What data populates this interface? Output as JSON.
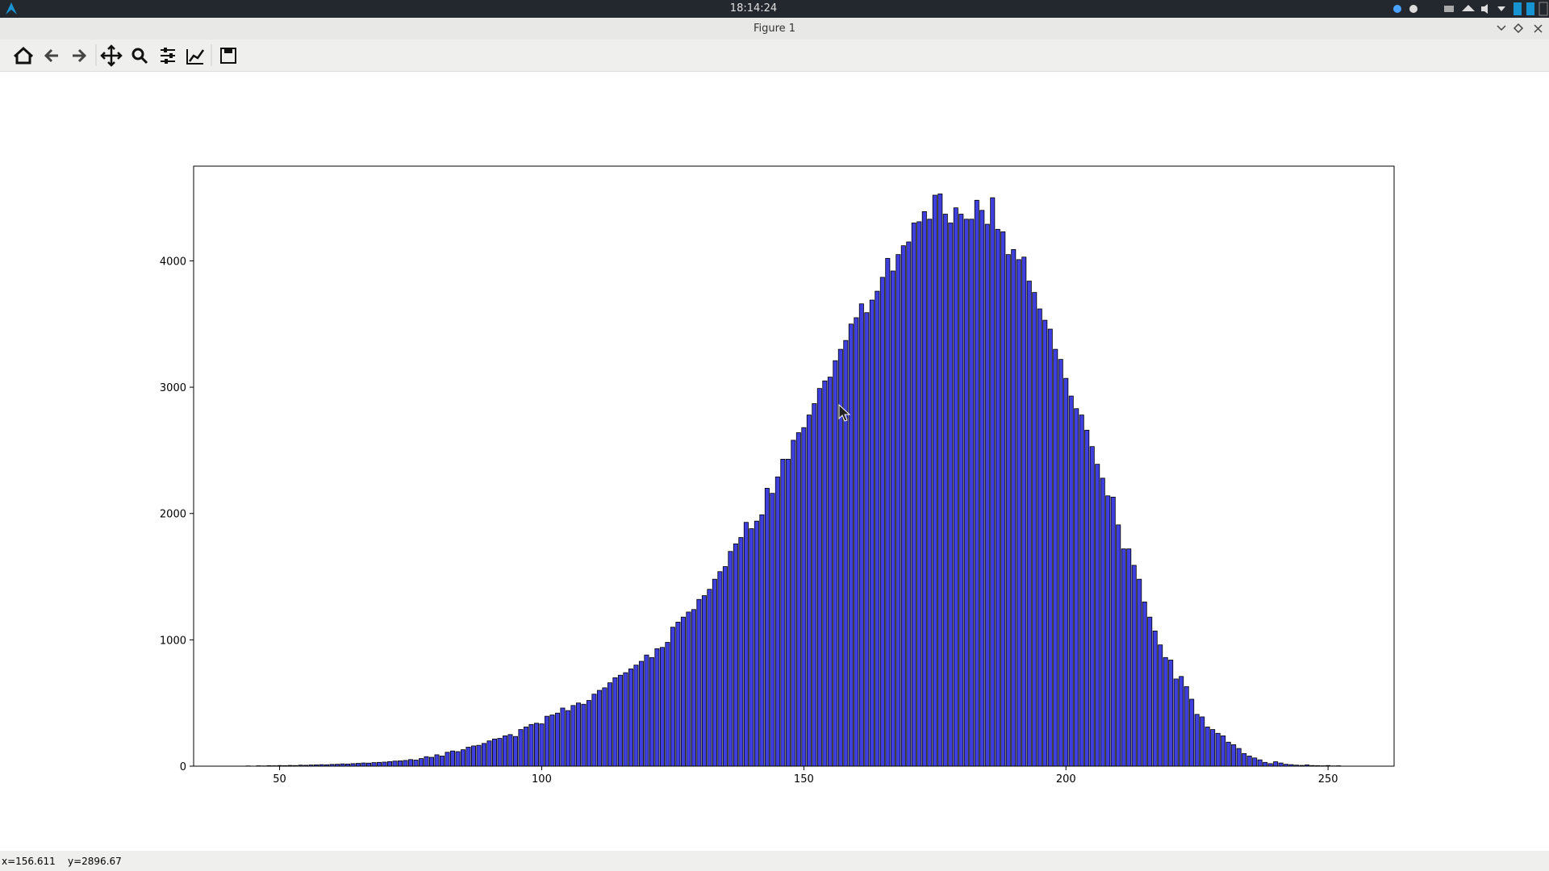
{
  "window": {
    "clock": "18:14:24",
    "title": "Figure 1",
    "status_x": "x=156.611",
    "status_y": "y=2896.67"
  },
  "chart_data": {
    "type": "bar",
    "color": "#3f3fe0",
    "edgecolor": "#000000",
    "bar_width": 0.8,
    "x": [
      44,
      45,
      46,
      47,
      48,
      49,
      50,
      51,
      52,
      53,
      54,
      55,
      56,
      57,
      58,
      59,
      60,
      61,
      62,
      63,
      64,
      65,
      66,
      67,
      68,
      69,
      70,
      71,
      72,
      73,
      74,
      75,
      76,
      77,
      78,
      79,
      80,
      81,
      82,
      83,
      84,
      85,
      86,
      87,
      88,
      89,
      90,
      91,
      92,
      93,
      94,
      95,
      96,
      97,
      98,
      99,
      100,
      101,
      102,
      103,
      104,
      105,
      106,
      107,
      108,
      109,
      110,
      111,
      112,
      113,
      114,
      115,
      116,
      117,
      118,
      119,
      120,
      121,
      122,
      123,
      124,
      125,
      126,
      127,
      128,
      129,
      130,
      131,
      132,
      133,
      134,
      135,
      136,
      137,
      138,
      139,
      140,
      141,
      142,
      143,
      144,
      145,
      146,
      147,
      148,
      149,
      150,
      151,
      152,
      153,
      154,
      155,
      156,
      157,
      158,
      159,
      160,
      161,
      162,
      163,
      164,
      165,
      166,
      167,
      168,
      169,
      170,
      171,
      172,
      173,
      174,
      175,
      176,
      177,
      178,
      179,
      180,
      181,
      182,
      183,
      184,
      185,
      186,
      187,
      188,
      189,
      190,
      191,
      192,
      193,
      194,
      195,
      196,
      197,
      198,
      199,
      200,
      201,
      202,
      203,
      204,
      205,
      206,
      207,
      208,
      209,
      210,
      211,
      212,
      213,
      214,
      215,
      216,
      217,
      218,
      219,
      220,
      221,
      222,
      223,
      224,
      225,
      226,
      227,
      228,
      229,
      230,
      231,
      232,
      233,
      234,
      235,
      236,
      237,
      238,
      239,
      240,
      241,
      242,
      243,
      244,
      245,
      246,
      247,
      248,
      249,
      250,
      251,
      252
    ],
    "values": [
      2,
      0,
      3,
      2,
      4,
      3,
      5,
      4,
      6,
      5,
      8,
      7,
      9,
      10,
      12,
      11,
      14,
      15,
      18,
      17,
      20,
      22,
      25,
      24,
      28,
      30,
      32,
      36,
      40,
      42,
      45,
      52,
      48,
      60,
      75,
      70,
      90,
      80,
      110,
      120,
      115,
      130,
      150,
      160,
      165,
      180,
      200,
      215,
      220,
      240,
      250,
      235,
      290,
      310,
      330,
      340,
      335,
      395,
      405,
      420,
      460,
      440,
      480,
      500,
      490,
      520,
      570,
      600,
      620,
      660,
      700,
      720,
      740,
      770,
      800,
      830,
      880,
      860,
      930,
      940,
      980,
      1100,
      1140,
      1180,
      1220,
      1240,
      1320,
      1350,
      1400,
      1480,
      1540,
      1580,
      1700,
      1760,
      1810,
      1930,
      1880,
      1940,
      1990,
      2200,
      2160,
      2290,
      2430,
      2430,
      2580,
      2640,
      2680,
      2780,
      2870,
      2990,
      3050,
      3080,
      3210,
      3300,
      3370,
      3500,
      3550,
      3660,
      3590,
      3690,
      3760,
      3870,
      4020,
      3920,
      4050,
      4120,
      4150,
      4300,
      4310,
      4390,
      4330,
      4520,
      4530,
      4370,
      4300,
      4420,
      4370,
      4330,
      4330,
      4480,
      4400,
      4290,
      4500,
      4250,
      4230,
      4050,
      4090,
      4010,
      4030,
      3840,
      3750,
      3620,
      3530,
      3460,
      3300,
      3220,
      3070,
      2930,
      2830,
      2780,
      2660,
      2530,
      2390,
      2280,
      2140,
      2130,
      1910,
      1720,
      1720,
      1590,
      1480,
      1300,
      1180,
      1070,
      960,
      860,
      840,
      690,
      710,
      630,
      530,
      410,
      390,
      310,
      290,
      260,
      240,
      190,
      170,
      140,
      100,
      80,
      65,
      50,
      30,
      20,
      35,
      25,
      15,
      12,
      8,
      6,
      10,
      5,
      4,
      3,
      5,
      2,
      3
    ],
    "xlim": [
      33.6,
      262.6
    ],
    "ylim": [
      0,
      4750
    ],
    "xticks": [
      50,
      100,
      150,
      200,
      250
    ],
    "yticks": [
      0,
      1000,
      2000,
      3000,
      4000
    ]
  }
}
